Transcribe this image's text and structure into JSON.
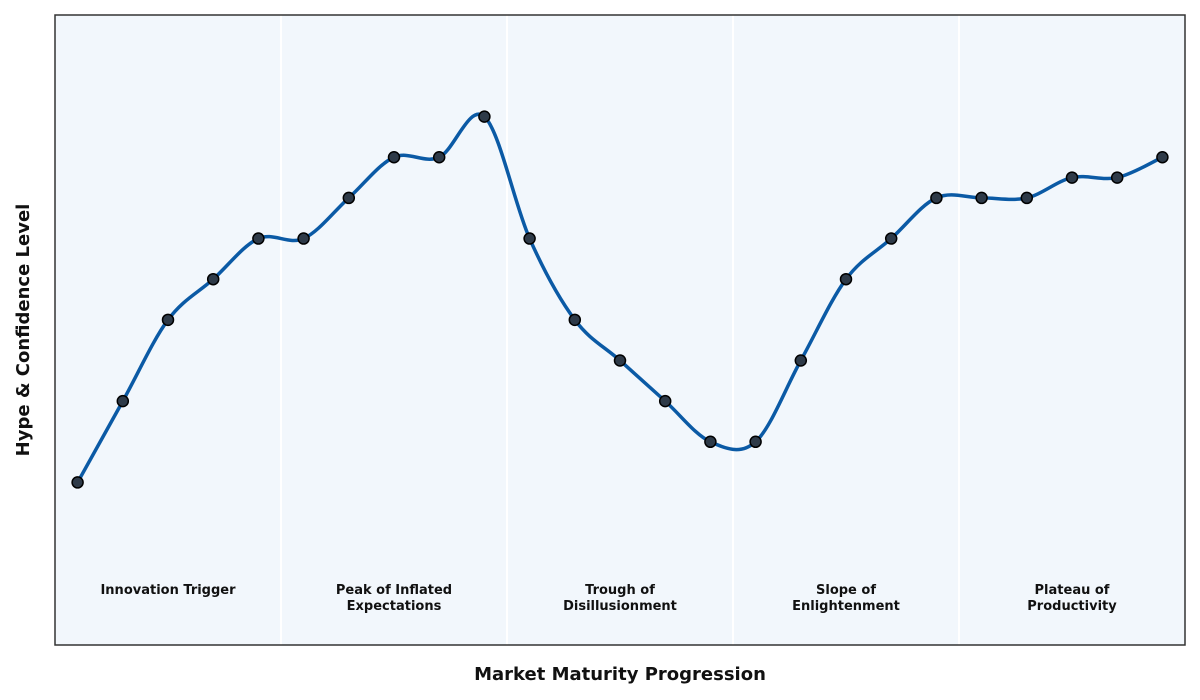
{
  "chart_data": {
    "type": "line",
    "x_label": "Market Maturity Progression",
    "y_label": "Hype & Confidence Level",
    "values": [
      2,
      4,
      6,
      7,
      8,
      8,
      9,
      10,
      10,
      11,
      8,
      6,
      5,
      4,
      3,
      3,
      5,
      7,
      8,
      9,
      9,
      9,
      9.5,
      9.5,
      10
    ],
    "color": "#0b5aa5",
    "marker_color": "#2e3a48",
    "xlim": [
      -0.5,
      24.5
    ],
    "ylim": [
      -2,
      13.5
    ],
    "background": "#f2f7fc",
    "phases": [
      [
        "Innovation Trigger"
      ],
      [
        "Peak of Inflated",
        "Expectations"
      ],
      [
        "Trough of",
        "Disillusionment"
      ],
      [
        "Slope of",
        "Enlightenment"
      ],
      [
        "Plateau of",
        "Productivity"
      ]
    ]
  }
}
